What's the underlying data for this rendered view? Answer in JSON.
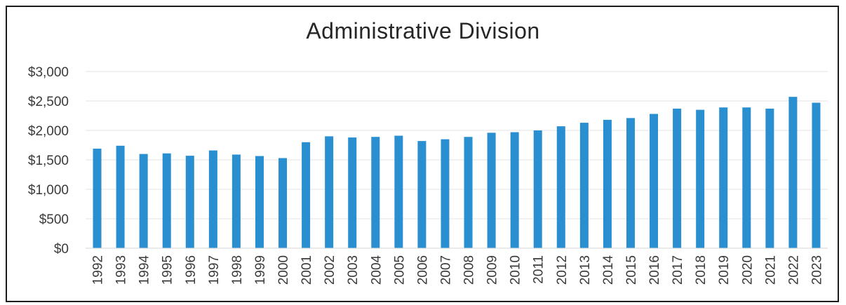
{
  "chart_data": {
    "type": "bar",
    "title": "Administrative Division",
    "xlabel": "",
    "ylabel": "",
    "ylim": [
      0,
      3000
    ],
    "yticks": [
      0,
      500,
      1000,
      1500,
      2000,
      2500,
      3000
    ],
    "ytick_labels": [
      "$0",
      "$500",
      "$1,000",
      "$1,500",
      "$2,000",
      "$2,500",
      "$3,000"
    ],
    "grid": true,
    "bar_color": "#2a8fd0",
    "grid_color": "#e3e3e3",
    "categories": [
      "1992",
      "1993",
      "1994",
      "1995",
      "1996",
      "1997",
      "1998",
      "1999",
      "2000",
      "2001",
      "2002",
      "2003",
      "2004",
      "2005",
      "2006",
      "2007",
      "2008",
      "2009",
      "2010",
      "2011",
      "2012",
      "2013",
      "2014",
      "2015",
      "2016",
      "2017",
      "2018",
      "2019",
      "2020",
      "2021",
      "2022",
      "2023"
    ],
    "values": [
      1690,
      1740,
      1600,
      1610,
      1570,
      1660,
      1590,
      1565,
      1530,
      1800,
      1900,
      1880,
      1890,
      1910,
      1820,
      1850,
      1890,
      1960,
      1970,
      2000,
      2070,
      2130,
      2180,
      2210,
      2280,
      2370,
      2350,
      2390,
      2390,
      2370,
      2570,
      2470
    ]
  }
}
